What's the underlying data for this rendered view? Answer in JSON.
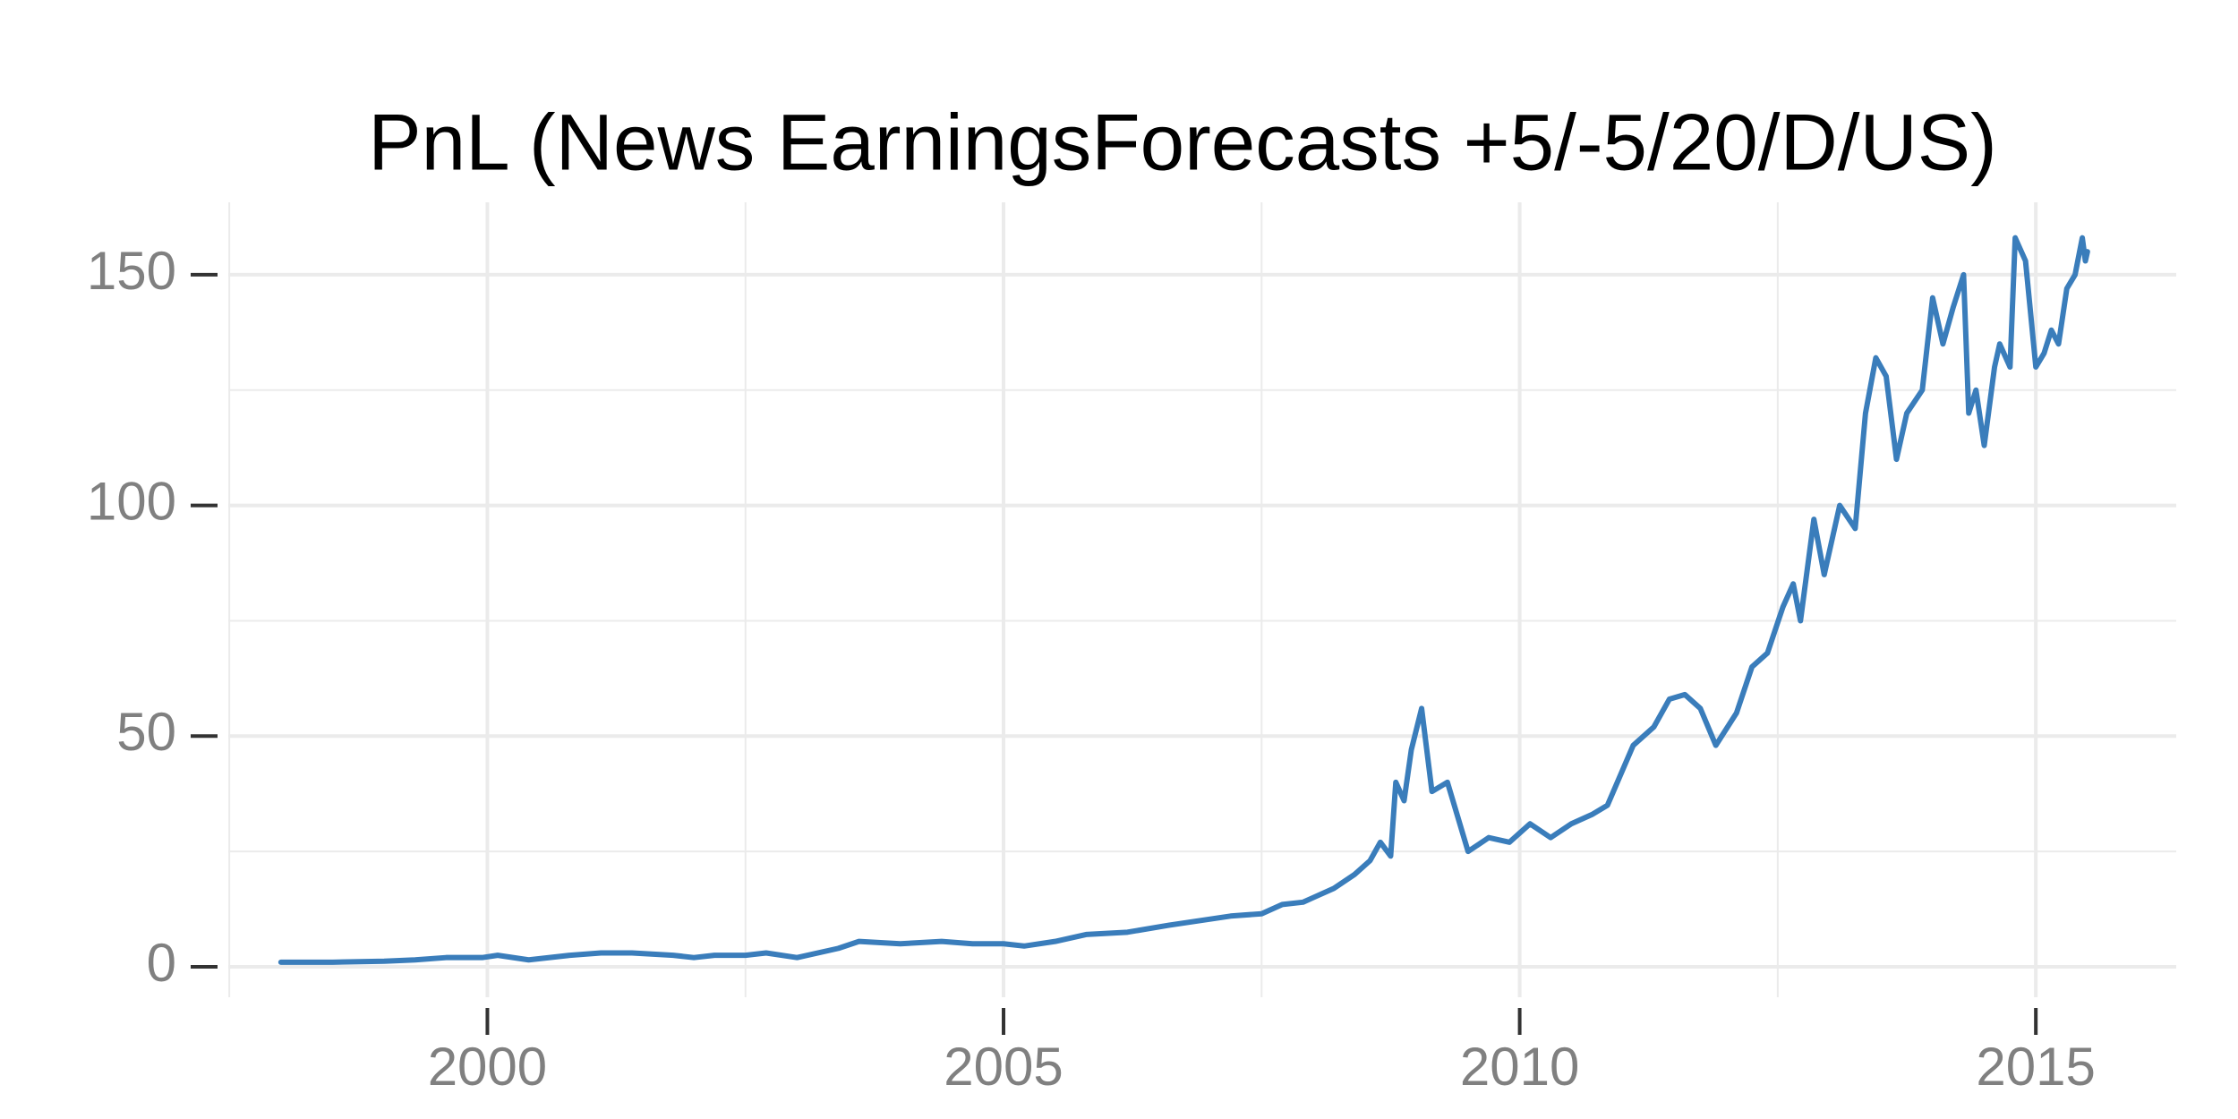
{
  "chart_data": {
    "type": "line",
    "title": "PnL (News EarningsForecasts +5/-5/20/D/US)",
    "x": [
      1998.0,
      1998.5,
      1999.0,
      1999.3,
      1999.6,
      1999.95,
      2000.1,
      2000.4,
      2000.8,
      2001.1,
      2001.4,
      2001.8,
      2002.0,
      2002.2,
      2002.5,
      2002.7,
      2003.0,
      2003.4,
      2003.6,
      2004.0,
      2004.4,
      2004.7,
      2005.0,
      2005.2,
      2005.5,
      2005.8,
      2006.2,
      2006.6,
      2006.9,
      2007.2,
      2007.5,
      2007.7,
      2007.9,
      2008.0,
      2008.2,
      2008.4,
      2008.55,
      2008.65,
      2008.75,
      2008.8,
      2008.88,
      2008.95,
      2009.05,
      2009.15,
      2009.3,
      2009.5,
      2009.7,
      2009.9,
      2010.1,
      2010.3,
      2010.5,
      2010.7,
      2010.85,
      2011.1,
      2011.3,
      2011.45,
      2011.6,
      2011.75,
      2011.9,
      2012.1,
      2012.25,
      2012.4,
      2012.55,
      2012.65,
      2012.72,
      2012.85,
      2012.95,
      2013.1,
      2013.25,
      2013.35,
      2013.45,
      2013.55,
      2013.65,
      2013.75,
      2013.9,
      2014.0,
      2014.1,
      2014.2,
      2014.3,
      2014.35,
      2014.42,
      2014.5,
      2014.6,
      2014.65,
      2014.75,
      2014.8,
      2014.9,
      2015.0,
      2015.08,
      2015.15,
      2015.22,
      2015.3,
      2015.38,
      2015.45,
      2015.48,
      2015.5
    ],
    "series": [
      {
        "name": "PnL",
        "color": "#3a7dbb",
        "values": [
          1,
          1,
          1.2,
          1.5,
          2,
          2,
          2.5,
          1.5,
          2.5,
          3,
          3,
          2.5,
          2,
          2.5,
          2.5,
          3,
          2,
          4,
          5.5,
          5,
          5.5,
          5,
          5,
          4.5,
          5.5,
          7,
          7.5,
          9,
          10,
          11,
          11.5,
          13.5,
          14,
          15,
          17,
          20,
          23,
          27,
          24,
          40,
          36,
          47,
          56,
          38,
          40,
          25,
          28,
          27,
          31,
          28,
          31,
          33,
          35,
          48,
          52,
          58,
          59,
          56,
          48,
          55,
          65,
          68,
          78,
          83,
          75,
          97,
          85,
          100,
          95,
          120,
          132,
          128,
          110,
          120,
          125,
          145,
          135,
          143,
          150,
          120,
          125,
          113,
          130,
          135,
          130,
          158,
          153,
          130,
          133,
          138,
          135,
          147,
          150,
          158,
          153,
          155
        ]
      }
    ],
    "xlim": [
      1997.49,
      2016.36
    ],
    "ylim": [
      -6.6,
      165.7
    ],
    "xticks": [
      2000,
      2005,
      2010,
      2015
    ],
    "yticks": [
      0,
      50,
      100,
      150
    ],
    "x_minor_ticks": [
      1997.5,
      2002.5,
      2007.5,
      2012.5
    ],
    "y_minor_ticks": [
      25,
      75,
      125
    ],
    "grid": true
  }
}
